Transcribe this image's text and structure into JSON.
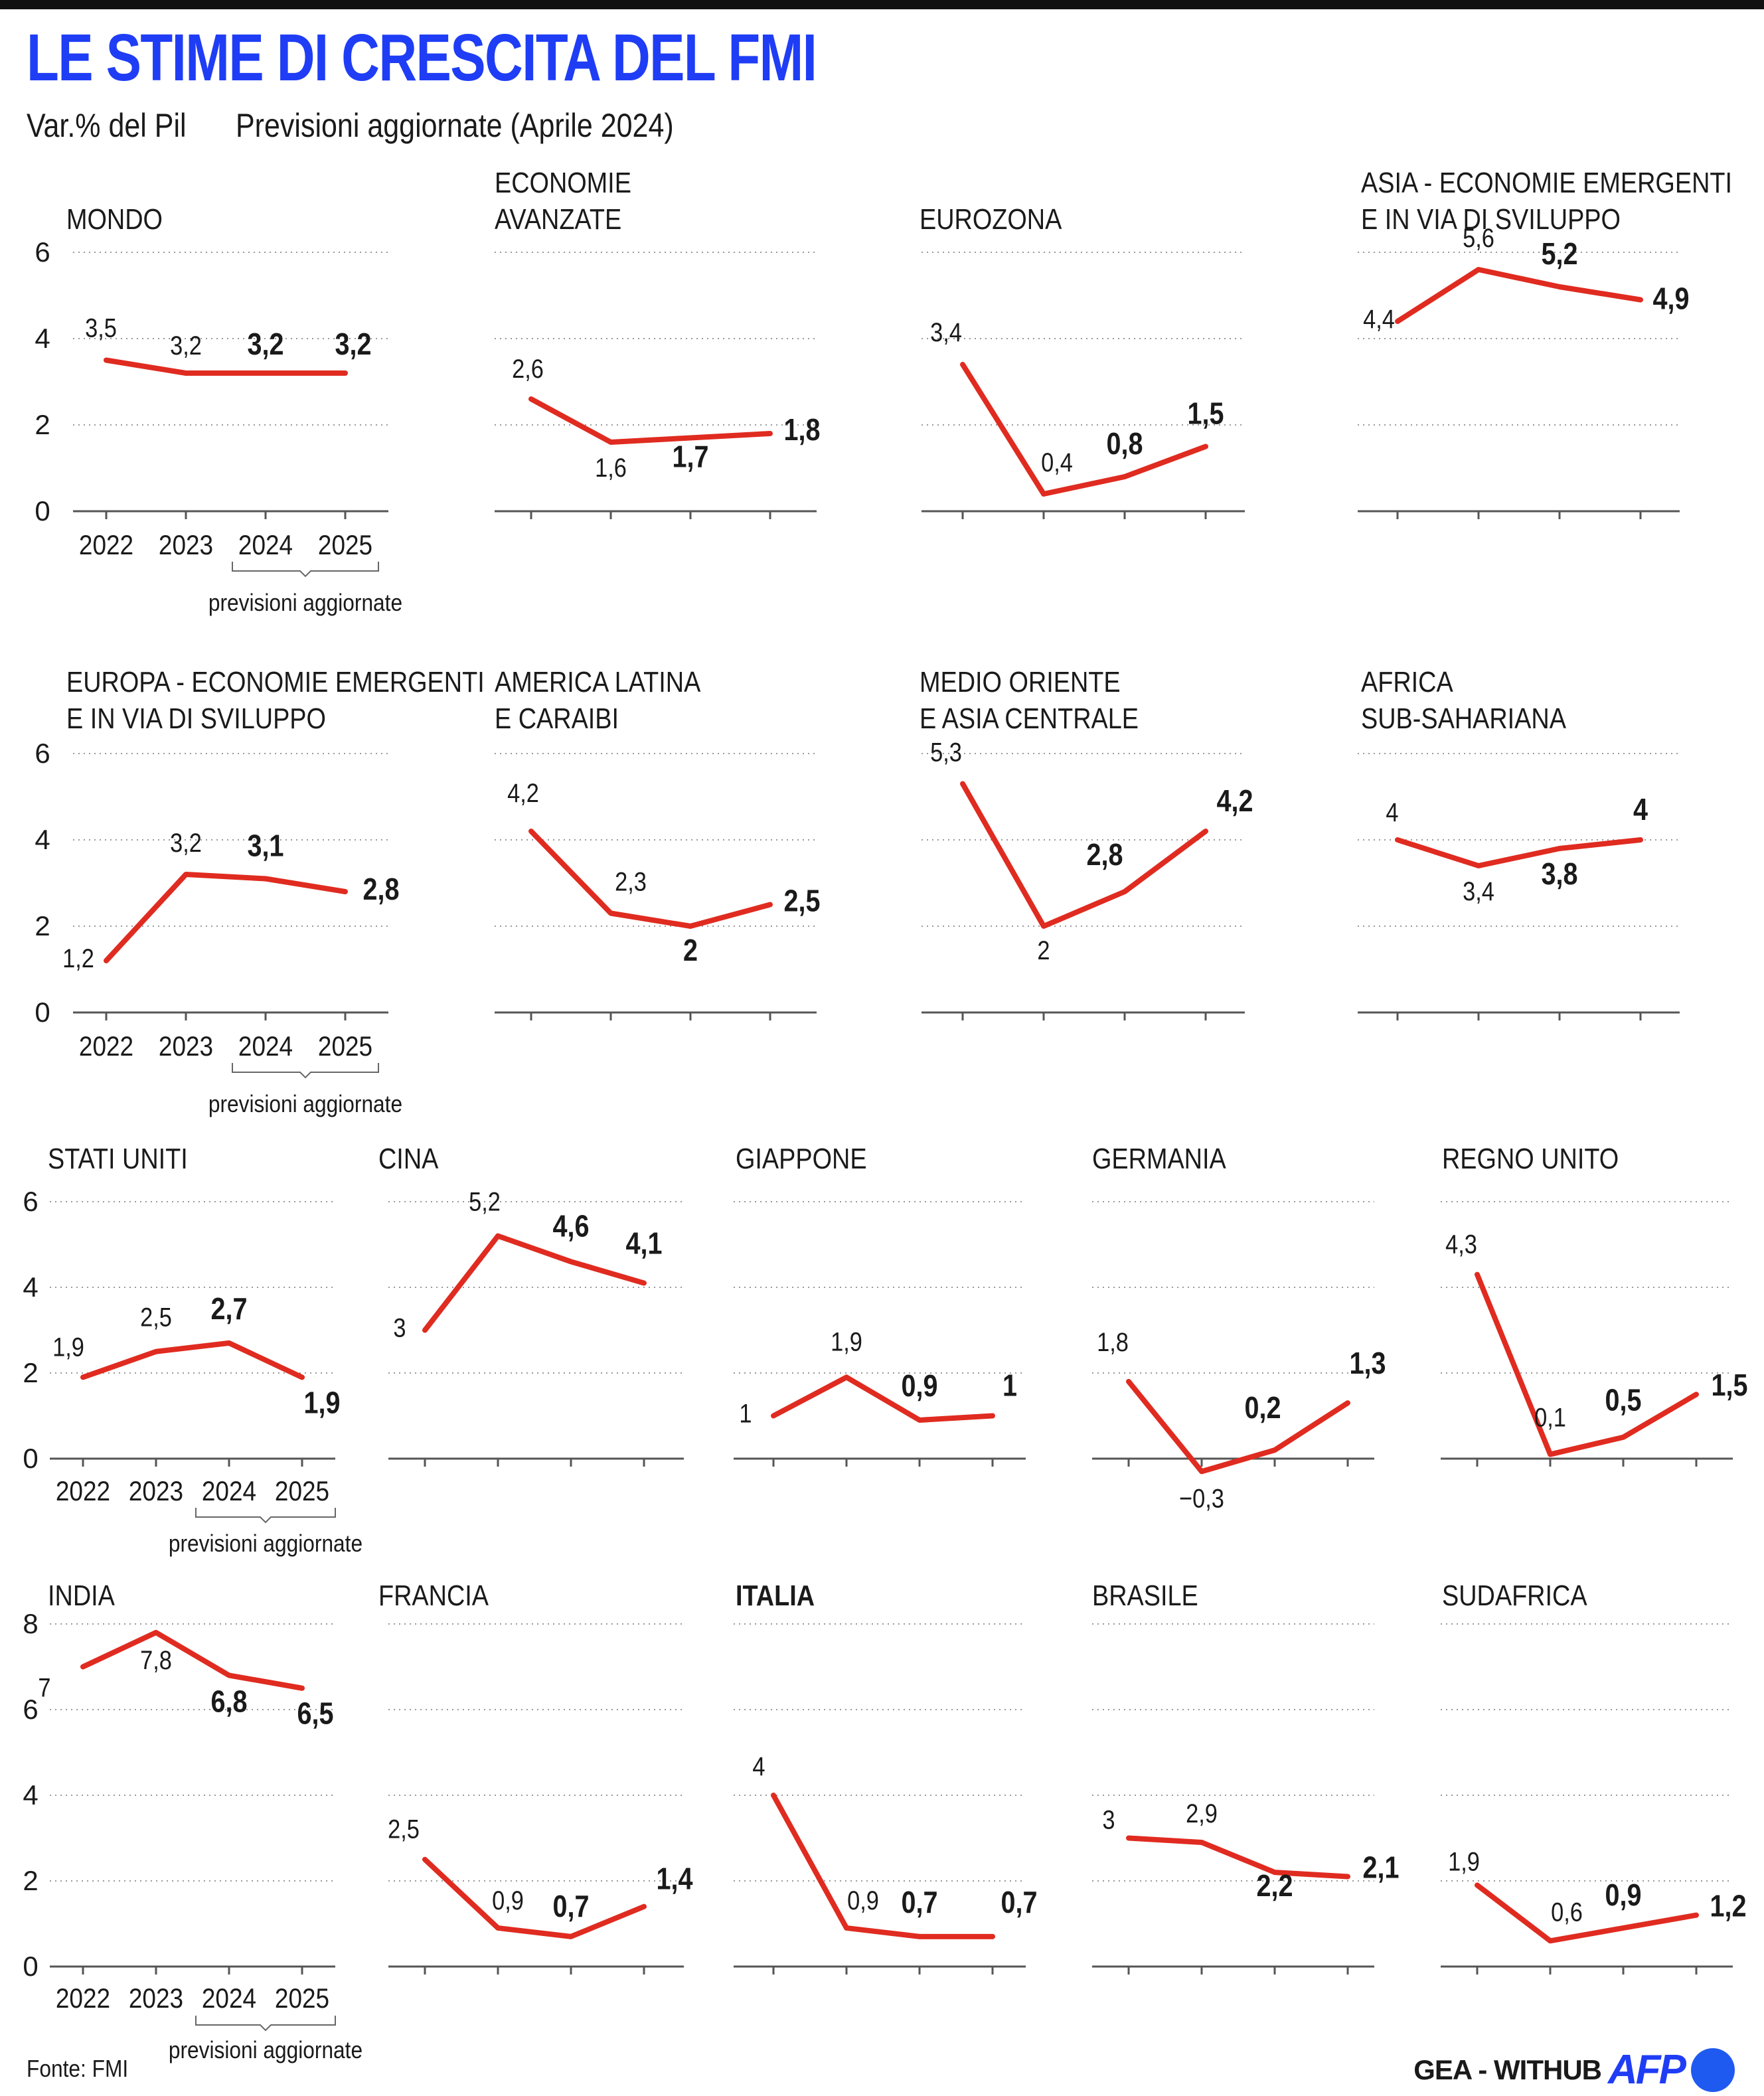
{
  "title": "LE STIME DI CRESCITA DEL FMI",
  "subtitle_left": "Var.% del Pil",
  "subtitle_right": "Previsioni aggiornate (Aprile 2024)",
  "source": "Fonte: FMI",
  "credit_text": "GEA - WITHUB",
  "credit_logo": "AFP",
  "forecast_label": "previsioni aggiornate",
  "colors": {
    "title": "#1f3df5",
    "line": "#e02b20",
    "grid": "#999999",
    "logo_dot": "#1f5af0"
  },
  "chart_data": [
    {
      "type": "line",
      "title": "MONDO",
      "categories": [
        "2022",
        "2023",
        "2024",
        "2025"
      ],
      "values": [
        3.5,
        3.2,
        3.2,
        3.2
      ],
      "labels": [
        "3,5",
        "3,2",
        "3,2",
        "3,2"
      ],
      "ylim": [
        0,
        6
      ],
      "yticks": [
        "0",
        "2",
        "4",
        "6"
      ],
      "bold_from_index": 2
    },
    {
      "type": "line",
      "title": "ECONOMIE AVANZATE",
      "categories": [
        "2022",
        "2023",
        "2024",
        "2025"
      ],
      "values": [
        2.6,
        1.6,
        1.7,
        1.8
      ],
      "labels": [
        "2,6",
        "1,6",
        "1,7",
        "1,8"
      ],
      "ylim": [
        0,
        6
      ],
      "bold_from_index": 2
    },
    {
      "type": "line",
      "title": "EUROZONA",
      "categories": [
        "2022",
        "2023",
        "2024",
        "2025"
      ],
      "values": [
        3.4,
        0.4,
        0.8,
        1.5
      ],
      "labels": [
        "3,4",
        "0,4",
        "0,8",
        "1,5"
      ],
      "ylim": [
        0,
        6
      ],
      "bold_from_index": 2
    },
    {
      "type": "line",
      "title": "ASIA - ECONOMIE EMERGENTI E IN VIA DI SVILUPPO",
      "categories": [
        "2022",
        "2023",
        "2024",
        "2025"
      ],
      "values": [
        4.4,
        5.6,
        5.2,
        4.9
      ],
      "labels": [
        "4,4",
        "5,6",
        "5,2",
        "4,9"
      ],
      "ylim": [
        0,
        6
      ],
      "bold_from_index": 2
    },
    {
      "type": "line",
      "title": "EUROPA - ECONOMIE EMERGENTI E IN VIA DI SVILUPPO",
      "categories": [
        "2022",
        "2023",
        "2024",
        "2025"
      ],
      "values": [
        1.2,
        3.2,
        3.1,
        2.8
      ],
      "labels": [
        "1,2",
        "3,2",
        "3,1",
        "2,8"
      ],
      "ylim": [
        0,
        6
      ],
      "yticks": [
        "0",
        "2",
        "4",
        "6"
      ],
      "bold_from_index": 2
    },
    {
      "type": "line",
      "title": "AMERICA LATINA E CARAIBI",
      "categories": [
        "2022",
        "2023",
        "2024",
        "2025"
      ],
      "values": [
        4.2,
        2.3,
        2.0,
        2.5
      ],
      "labels": [
        "4,2",
        "2,3",
        "2",
        "2,5"
      ],
      "ylim": [
        0,
        6
      ],
      "bold_from_index": 2
    },
    {
      "type": "line",
      "title": "MEDIO ORIENTE E ASIA CENTRALE",
      "categories": [
        "2022",
        "2023",
        "2024",
        "2025"
      ],
      "values": [
        5.3,
        2.0,
        2.8,
        4.2
      ],
      "labels": [
        "5,3",
        "2",
        "2,8",
        "4,2"
      ],
      "ylim": [
        0,
        6
      ],
      "bold_from_index": 2
    },
    {
      "type": "line",
      "title": "AFRICA SUB-SAHARIANA",
      "categories": [
        "2022",
        "2023",
        "2024",
        "2025"
      ],
      "values": [
        4.0,
        3.4,
        3.8,
        4.0
      ],
      "labels": [
        "4",
        "3,4",
        "3,8",
        "4"
      ],
      "ylim": [
        0,
        6
      ],
      "bold_from_index": 2
    },
    {
      "type": "line",
      "title": "STATI UNITI",
      "categories": [
        "2022",
        "2023",
        "2024",
        "2025"
      ],
      "values": [
        1.9,
        2.5,
        2.7,
        1.9
      ],
      "labels": [
        "1,9",
        "2,5",
        "2,7",
        "1,9"
      ],
      "ylim": [
        0,
        6
      ],
      "yticks": [
        "0",
        "2",
        "4",
        "6"
      ],
      "bold_from_index": 2
    },
    {
      "type": "line",
      "title": "CINA",
      "categories": [
        "2022",
        "2023",
        "2024",
        "2025"
      ],
      "values": [
        3.0,
        5.2,
        4.6,
        4.1
      ],
      "labels": [
        "3",
        "5,2",
        "4,6",
        "4,1"
      ],
      "ylim": [
        0,
        6
      ],
      "bold_from_index": 2
    },
    {
      "type": "line",
      "title": "GIAPPONE",
      "categories": [
        "2022",
        "2023",
        "2024",
        "2025"
      ],
      "values": [
        1.0,
        1.9,
        0.9,
        1.0
      ],
      "labels": [
        "1",
        "1,9",
        "0,9",
        "1"
      ],
      "ylim": [
        0,
        6
      ],
      "bold_from_index": 2
    },
    {
      "type": "line",
      "title": "GERMANIA",
      "categories": [
        "2022",
        "2023",
        "2024",
        "2025"
      ],
      "values": [
        1.8,
        -0.3,
        0.2,
        1.3
      ],
      "labels": [
        "1,8",
        "−0,3",
        "0,2",
        "1,3"
      ],
      "ylim": [
        0,
        6
      ],
      "bold_from_index": 2
    },
    {
      "type": "line",
      "title": "REGNO UNITO",
      "categories": [
        "2022",
        "2023",
        "2024",
        "2025"
      ],
      "values": [
        4.3,
        0.1,
        0.5,
        1.5
      ],
      "labels": [
        "4,3",
        "0,1",
        "0,5",
        "1,5"
      ],
      "ylim": [
        0,
        6
      ],
      "bold_from_index": 2
    },
    {
      "type": "line",
      "title": "INDIA",
      "categories": [
        "2022",
        "2023",
        "2024",
        "2025"
      ],
      "values": [
        7.0,
        7.8,
        6.8,
        6.5
      ],
      "labels": [
        "7",
        "7,8",
        "6,8",
        "6,5"
      ],
      "ylim": [
        0,
        8
      ],
      "yticks": [
        "0",
        "2",
        "4",
        "6",
        "8"
      ],
      "bold_from_index": 2
    },
    {
      "type": "line",
      "title": "FRANCIA",
      "categories": [
        "2022",
        "2023",
        "2024",
        "2025"
      ],
      "values": [
        2.5,
        0.9,
        0.7,
        1.4
      ],
      "labels": [
        "2,5",
        "0,9",
        "0,7",
        "1,4"
      ],
      "ylim": [
        0,
        8
      ],
      "bold_from_index": 2
    },
    {
      "type": "line",
      "title": "ITALIA",
      "categories": [
        "2022",
        "2023",
        "2024",
        "2025"
      ],
      "values": [
        4.0,
        0.9,
        0.7,
        0.7
      ],
      "labels": [
        "4",
        "0,9",
        "0,7",
        "0,7"
      ],
      "ylim": [
        0,
        8
      ],
      "bold_from_index": 2
    },
    {
      "type": "line",
      "title": "BRASILE",
      "categories": [
        "2022",
        "2023",
        "2024",
        "2025"
      ],
      "values": [
        3.0,
        2.9,
        2.2,
        2.1
      ],
      "labels": [
        "3",
        "2,9",
        "2,2",
        "2,1"
      ],
      "ylim": [
        0,
        8
      ],
      "bold_from_index": 2
    },
    {
      "type": "line",
      "title": "SUDAFRICA",
      "categories": [
        "2022",
        "2023",
        "2024",
        "2025"
      ],
      "values": [
        1.9,
        0.6,
        0.9,
        1.2
      ],
      "labels": [
        "1,9",
        "0,6",
        "0,9",
        "1,2"
      ],
      "ylim": [
        0,
        8
      ],
      "bold_from_index": 2
    }
  ]
}
